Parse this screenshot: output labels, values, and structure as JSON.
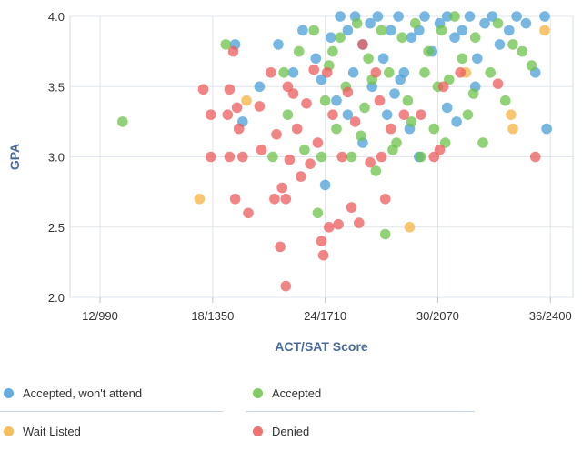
{
  "chart_data": {
    "type": "scatter",
    "xlabel": "ACT/SAT Score",
    "ylabel": "GPA",
    "x_ticks": [
      "12/990",
      "18/1350",
      "24/1710",
      "30/2070",
      "36/2400"
    ],
    "x_tick_values": [
      12,
      18,
      24,
      30,
      36
    ],
    "y_ticks": [
      "2.0",
      "2.5",
      "3.0",
      "3.5",
      "4.0"
    ],
    "y_tick_values": [
      2.0,
      2.5,
      3.0,
      3.5,
      4.0
    ],
    "xlim": [
      10.4,
      37.2
    ],
    "ylim": [
      2.0,
      4.0
    ],
    "grid": true,
    "legend_position": "bottom",
    "series": [
      {
        "name": "Accepted, won't attend",
        "color": "#4a9fd8",
        "points": [
          [
            19.2,
            3.8
          ],
          [
            19.6,
            3.25
          ],
          [
            20.5,
            3.5
          ],
          [
            21.5,
            3.8
          ],
          [
            22.3,
            3.6
          ],
          [
            22.8,
            3.9
          ],
          [
            23.5,
            3.7
          ],
          [
            23.8,
            3.55
          ],
          [
            24.3,
            3.85
          ],
          [
            24.8,
            4.0
          ],
          [
            25.2,
            3.9
          ],
          [
            25.6,
            4.0
          ],
          [
            26.0,
            3.8
          ],
          [
            26.4,
            3.95
          ],
          [
            26.8,
            4.0
          ],
          [
            27.1,
            3.7
          ],
          [
            27.5,
            3.9
          ],
          [
            27.9,
            4.0
          ],
          [
            28.2,
            3.6
          ],
          [
            28.6,
            3.85
          ],
          [
            29.0,
            3.9
          ],
          [
            29.3,
            4.0
          ],
          [
            29.7,
            3.75
          ],
          [
            30.1,
            3.95
          ],
          [
            30.5,
            4.0
          ],
          [
            30.9,
            3.85
          ],
          [
            31.3,
            3.9
          ],
          [
            31.7,
            4.0
          ],
          [
            32.1,
            3.7
          ],
          [
            32.5,
            3.95
          ],
          [
            32.9,
            4.0
          ],
          [
            33.3,
            3.8
          ],
          [
            33.8,
            3.9
          ],
          [
            34.2,
            4.0
          ],
          [
            34.7,
            3.95
          ],
          [
            35.2,
            3.6
          ],
          [
            35.7,
            4.0
          ],
          [
            35.8,
            3.2
          ],
          [
            24.6,
            3.4
          ],
          [
            25.5,
            3.6
          ],
          [
            26.5,
            3.5
          ],
          [
            27.3,
            3.3
          ],
          [
            28.0,
            3.55
          ],
          [
            29.0,
            3.0
          ],
          [
            30.5,
            3.35
          ],
          [
            31.0,
            3.25
          ],
          [
            32.0,
            3.5
          ],
          [
            28.5,
            3.2
          ],
          [
            26.0,
            3.1
          ],
          [
            24.0,
            2.8
          ],
          [
            25.2,
            3.3
          ],
          [
            27.7,
            3.45
          ]
        ]
      },
      {
        "name": "Accepted",
        "color": "#6cc24a",
        "points": [
          [
            13.2,
            3.25
          ],
          [
            18.7,
            3.8
          ],
          [
            21.2,
            3.0
          ],
          [
            21.8,
            3.6
          ],
          [
            22.0,
            3.3
          ],
          [
            22.6,
            3.75
          ],
          [
            22.9,
            3.05
          ],
          [
            23.4,
            3.9
          ],
          [
            23.6,
            2.6
          ],
          [
            24.0,
            3.4
          ],
          [
            24.2,
            3.65
          ],
          [
            24.6,
            3.2
          ],
          [
            24.8,
            3.85
          ],
          [
            25.1,
            3.5
          ],
          [
            25.4,
            3.0
          ],
          [
            25.7,
            3.95
          ],
          [
            26.1,
            3.35
          ],
          [
            26.3,
            3.7
          ],
          [
            26.7,
            2.9
          ],
          [
            27.0,
            3.9
          ],
          [
            27.2,
            2.45
          ],
          [
            27.4,
            3.6
          ],
          [
            27.8,
            3.1
          ],
          [
            28.1,
            3.85
          ],
          [
            28.4,
            3.4
          ],
          [
            28.8,
            3.95
          ],
          [
            29.1,
            3.0
          ],
          [
            29.5,
            3.75
          ],
          [
            29.8,
            3.2
          ],
          [
            30.2,
            3.9
          ],
          [
            30.6,
            3.55
          ],
          [
            30.9,
            4.0
          ],
          [
            31.3,
            3.7
          ],
          [
            31.6,
            3.3
          ],
          [
            32.0,
            3.85
          ],
          [
            32.4,
            3.1
          ],
          [
            32.8,
            3.6
          ],
          [
            33.2,
            3.95
          ],
          [
            33.6,
            3.4
          ],
          [
            34.0,
            3.8
          ],
          [
            34.5,
            3.75
          ],
          [
            35.0,
            3.65
          ],
          [
            23.8,
            3.0
          ],
          [
            25.9,
            3.15
          ],
          [
            28.6,
            3.25
          ],
          [
            30.0,
            3.5
          ],
          [
            31.9,
            3.45
          ],
          [
            26.5,
            3.55
          ],
          [
            27.6,
            3.05
          ],
          [
            24.4,
            3.75
          ],
          [
            29.3,
            3.6
          ],
          [
            30.4,
            3.1
          ]
        ]
      },
      {
        "name": "Wait Listed",
        "color": "#f5b342",
        "points": [
          [
            17.3,
            2.7
          ],
          [
            19.8,
            3.4
          ],
          [
            28.5,
            2.5
          ],
          [
            33.9,
            3.3
          ],
          [
            34.0,
            3.2
          ],
          [
            35.7,
            3.9
          ],
          [
            31.5,
            3.6
          ]
        ]
      },
      {
        "name": "Denied",
        "color": "#ec5b5b",
        "points": [
          [
            17.5,
            3.48
          ],
          [
            17.9,
            3.0
          ],
          [
            17.9,
            3.3
          ],
          [
            18.8,
            3.3
          ],
          [
            18.9,
            3.48
          ],
          [
            18.9,
            3.0
          ],
          [
            19.2,
            2.7
          ],
          [
            19.3,
            3.35
          ],
          [
            19.4,
            3.2
          ],
          [
            19.6,
            3.0
          ],
          [
            19.9,
            2.6
          ],
          [
            19.1,
            3.75
          ],
          [
            20.6,
            3.05
          ],
          [
            20.5,
            3.36
          ],
          [
            21.1,
            3.6
          ],
          [
            21.3,
            2.7
          ],
          [
            21.4,
            3.16
          ],
          [
            21.6,
            2.36
          ],
          [
            21.7,
            2.78
          ],
          [
            21.9,
            2.08
          ],
          [
            21.9,
            2.7
          ],
          [
            22.1,
            2.98
          ],
          [
            22.3,
            3.45
          ],
          [
            22.5,
            3.2
          ],
          [
            22.7,
            2.86
          ],
          [
            23.0,
            3.38
          ],
          [
            23.2,
            2.95
          ],
          [
            23.4,
            3.62
          ],
          [
            23.6,
            3.1
          ],
          [
            23.8,
            2.4
          ],
          [
            23.9,
            2.3
          ],
          [
            24.2,
            2.5
          ],
          [
            24.4,
            3.3
          ],
          [
            24.7,
            2.52
          ],
          [
            24.9,
            3.0
          ],
          [
            25.2,
            3.46
          ],
          [
            25.4,
            2.64
          ],
          [
            25.6,
            3.25
          ],
          [
            25.8,
            2.53
          ],
          [
            26.0,
            3.8
          ],
          [
            26.4,
            2.96
          ],
          [
            26.7,
            3.6
          ],
          [
            27.2,
            2.7
          ],
          [
            27.0,
            3.0
          ],
          [
            27.5,
            3.2
          ],
          [
            28.2,
            3.3
          ],
          [
            29.1,
            3.3
          ],
          [
            29.8,
            3.0
          ],
          [
            30.1,
            3.05
          ],
          [
            30.3,
            3.5
          ],
          [
            31.2,
            3.6
          ],
          [
            33.2,
            3.52
          ],
          [
            35.2,
            3.0
          ],
          [
            22.0,
            3.5
          ],
          [
            24.1,
            3.6
          ],
          [
            26.9,
            3.4
          ]
        ]
      }
    ]
  }
}
